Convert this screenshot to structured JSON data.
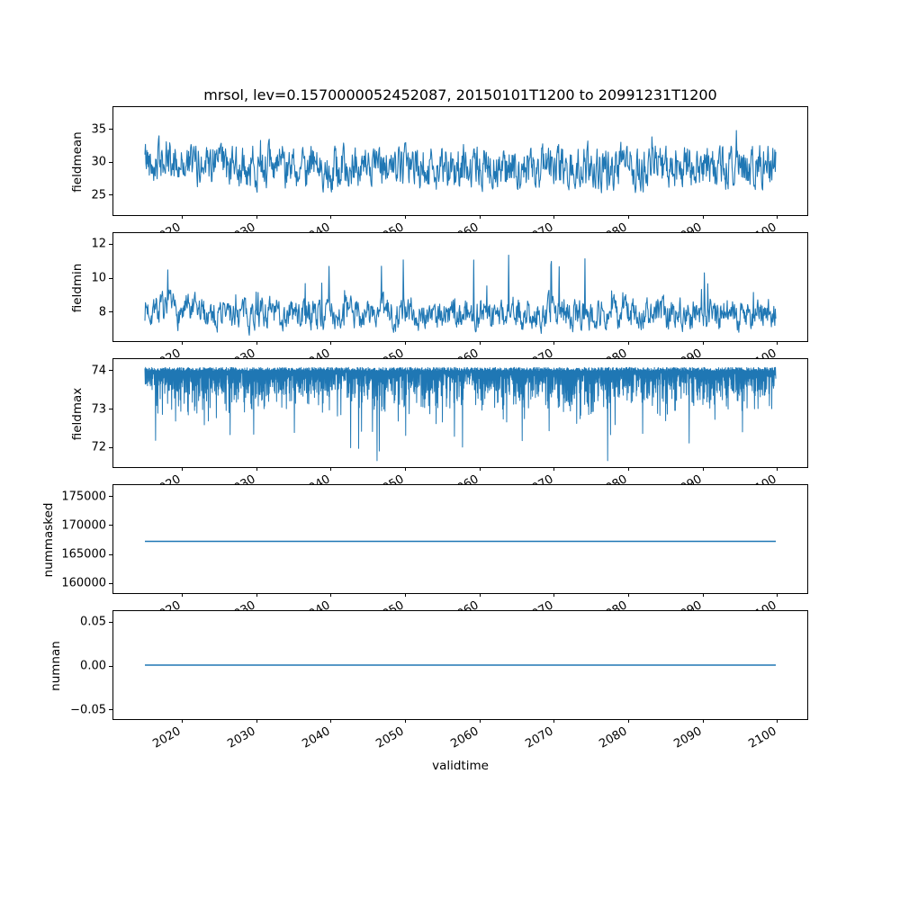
{
  "figure": {
    "title": "mrsol, lev=0.1570000052452087, 20150101T1200 to 20991231T1200",
    "xlabel": "validtime",
    "line_color": "#1f77b4",
    "axis_color": "#000000",
    "xlim": [
      2010.75,
      2104.25
    ],
    "x_data_range": [
      2015,
      2100
    ],
    "xticks": [
      2020,
      2030,
      2040,
      2050,
      2060,
      2070,
      2080,
      2090,
      2100
    ],
    "xtick_labels": [
      "2020",
      "2030",
      "2040",
      "2050",
      "2060",
      "2070",
      "2080",
      "2090",
      "2100"
    ]
  },
  "chart_data": [
    {
      "type": "line",
      "name": "fieldmean",
      "ylabel": "fieldmean",
      "ylim": [
        21.7,
        38.4
      ],
      "yticks": [
        25,
        30,
        35
      ],
      "ytick_labels": [
        "25",
        "30",
        "35"
      ],
      "series": {
        "gen": "ar1spike",
        "seed": 42,
        "n": 1300,
        "base": 29.1,
        "ar": 0.45,
        "sigma": 2.7,
        "spike_prob": 0.012,
        "spike_amp": 4.0,
        "boost": 1.4,
        "boost_tau": 5,
        "clip": [
          22.4,
          37.6
        ]
      }
    },
    {
      "type": "line",
      "name": "fieldmin",
      "ylabel": "fieldmin",
      "ylim": [
        6.2,
        12.65
      ],
      "yticks": [
        8,
        10,
        12
      ],
      "ytick_labels": [
        "8",
        "10",
        "12"
      ],
      "series": {
        "gen": "ar1spike",
        "seed": 7,
        "n": 1300,
        "base": 7.85,
        "ar": 0.5,
        "sigma": 0.75,
        "spike_prob": 0.03,
        "spike_amp": 3.2,
        "boost": 0.3,
        "boost_tau": 4,
        "clip": [
          6.5,
          12.3
        ]
      }
    },
    {
      "type": "line",
      "name": "fieldmax",
      "ylabel": "fieldmax",
      "ylim": [
        71.45,
        74.3
      ],
      "yticks": [
        72,
        73,
        74
      ],
      "ytick_labels": [
        "72",
        "73",
        "74"
      ],
      "series": {
        "gen": "ceiling",
        "seed": 99,
        "n": 2200,
        "top": 74.08,
        "jitter": 0.1,
        "dip_base": 0.12,
        "dip_sigma": 0.5,
        "deep_prob": 0.03,
        "deep_amp": 1.7,
        "clip": [
          71.62,
          74.3
        ]
      }
    },
    {
      "type": "line",
      "name": "nummasked",
      "ylabel": "nummasked",
      "ylim": [
        158000,
        177000
      ],
      "yticks": [
        160000,
        165000,
        170000,
        175000
      ],
      "ytick_labels": [
        "160000",
        "165000",
        "170000",
        "175000"
      ],
      "series": {
        "gen": "flat",
        "value": 167100
      }
    },
    {
      "type": "line",
      "name": "numnan",
      "ylabel": "numnan",
      "ylim": [
        -0.0625,
        0.0625
      ],
      "yticks": [
        -0.05,
        0,
        0.05
      ],
      "ytick_labels": [
        "−0.05",
        "0.00",
        "0.05"
      ],
      "series": {
        "gen": "flat",
        "value": 0
      }
    }
  ]
}
